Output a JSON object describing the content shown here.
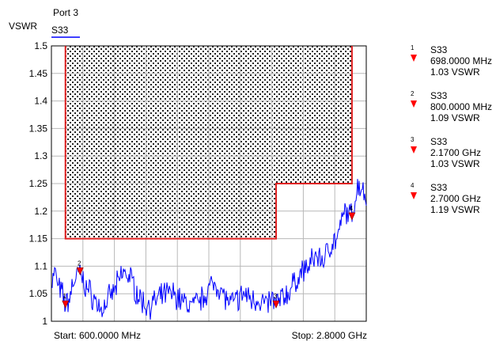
{
  "header": {
    "port_label": "Port 3",
    "trace_label": "S33"
  },
  "chart_data": {
    "type": "line",
    "ylabel": "VSWR",
    "ylim": [
      1.0,
      1.5
    ],
    "yticks": [
      "1.5",
      "1.45",
      "1.4",
      "1.35",
      "1.3",
      "1.25",
      "1.2",
      "1.15",
      "1.1",
      "1.05",
      "1"
    ],
    "xlim_mhz": [
      600,
      2800
    ],
    "start_label": "Start: 600.0000 MHz",
    "stop_label": "Stop: 2.8000 GHz",
    "grid": true,
    "limit_line": {
      "color": "#e02020",
      "segments": [
        {
          "x_start_mhz": 698,
          "x_end_mhz": 2170,
          "value": 1.15
        },
        {
          "x_start_mhz": 2170,
          "x_end_mhz": 2700,
          "value": 1.25
        }
      ]
    },
    "series": [
      {
        "name": "S33",
        "color": "#0000ff",
        "x_mhz": [
          600,
          625,
          650,
          675,
          698,
          725,
          750,
          775,
          800,
          825,
          850,
          875,
          900,
          950,
          1000,
          1050,
          1100,
          1150,
          1200,
          1250,
          1300,
          1350,
          1400,
          1450,
          1500,
          1550,
          1600,
          1650,
          1700,
          1750,
          1800,
          1850,
          1900,
          1950,
          2000,
          2050,
          2100,
          2150,
          2170,
          2200,
          2250,
          2300,
          2350,
          2400,
          2450,
          2500,
          2550,
          2600,
          2650,
          2700,
          2725,
          2750,
          2775,
          2800
        ],
        "y": [
          1.07,
          1.09,
          1.06,
          1.05,
          1.03,
          1.04,
          1.07,
          1.08,
          1.09,
          1.07,
          1.06,
          1.05,
          1.04,
          1.02,
          1.04,
          1.06,
          1.09,
          1.08,
          1.05,
          1.03,
          1.03,
          1.04,
          1.05,
          1.05,
          1.04,
          1.03,
          1.03,
          1.04,
          1.06,
          1.07,
          1.05,
          1.03,
          1.04,
          1.05,
          1.04,
          1.04,
          1.03,
          1.04,
          1.03,
          1.04,
          1.05,
          1.07,
          1.09,
          1.1,
          1.12,
          1.11,
          1.14,
          1.15,
          1.2,
          1.19,
          1.23,
          1.25,
          1.24,
          1.22
        ]
      }
    ],
    "markers": [
      {
        "id": "1",
        "trace": "S33",
        "x_mhz": 698,
        "value": 1.03,
        "freq_label": "698.0000 MHz",
        "vswr_label": "1.03 VSWR"
      },
      {
        "id": "2",
        "trace": "S33",
        "x_mhz": 800,
        "value": 1.09,
        "freq_label": "800.0000 MHz",
        "vswr_label": "1.09 VSWR"
      },
      {
        "id": "3",
        "trace": "S33",
        "x_mhz": 2170,
        "value": 1.03,
        "freq_label": "2.1700 GHz",
        "vswr_label": "1.03 VSWR"
      },
      {
        "id": "4",
        "trace": "S33",
        "x_mhz": 2700,
        "value": 1.19,
        "freq_label": "2.7000 GHz",
        "vswr_label": "1.19 VSWR"
      }
    ]
  },
  "colors": {
    "trace": "#0000ff",
    "limit": "#e02020",
    "marker": "#ff0000",
    "grid": "#b8b8b8"
  }
}
